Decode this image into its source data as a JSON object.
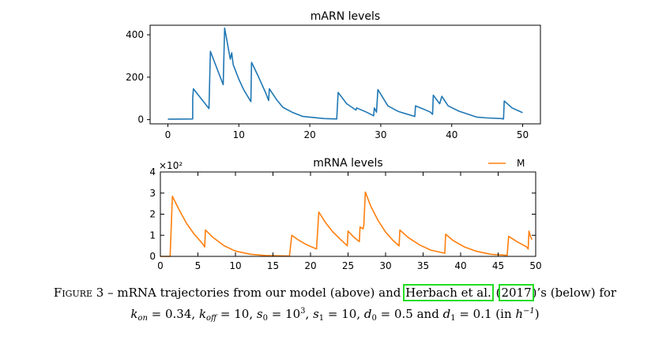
{
  "chart_data": [
    {
      "type": "line",
      "title": "mARN levels",
      "xlabel": "",
      "ylabel": "",
      "xlim": [
        -2.5,
        52.5
      ],
      "ylim": [
        -20,
        445
      ],
      "xticks": [
        0,
        10,
        20,
        30,
        40,
        50
      ],
      "yticks": [
        0,
        200,
        400
      ],
      "grid": false,
      "series": [
        {
          "color": "#1f77b4",
          "points": [
            [
              0,
              2
            ],
            [
              3.5,
              3
            ],
            [
              3.5,
              100
            ],
            [
              3.6,
              145
            ],
            [
              5.8,
              52
            ],
            [
              6.0,
              322
            ],
            [
              7.8,
              165
            ],
            [
              8.0,
              432
            ],
            [
              8.8,
              285
            ],
            [
              9.0,
              315
            ],
            [
              9.2,
              260
            ],
            [
              10.0,
              190
            ],
            [
              10.7,
              140
            ],
            [
              11.7,
              85
            ],
            [
              11.8,
              270
            ],
            [
              12.8,
              200
            ],
            [
              13.8,
              125
            ],
            [
              14.2,
              90
            ],
            [
              14.3,
              145
            ],
            [
              15.3,
              95
            ],
            [
              16.2,
              58
            ],
            [
              17.5,
              35
            ],
            [
              19.0,
              15
            ],
            [
              22.0,
              5
            ],
            [
              23.8,
              3
            ],
            [
              24.0,
              128
            ],
            [
              25.2,
              75
            ],
            [
              26.5,
              45
            ],
            [
              26.6,
              55
            ],
            [
              28.0,
              35
            ],
            [
              29.0,
              18
            ],
            [
              29.1,
              55
            ],
            [
              29.4,
              35
            ],
            [
              29.6,
              142
            ],
            [
              31.0,
              65
            ],
            [
              32.5,
              38
            ],
            [
              34.8,
              15
            ],
            [
              34.9,
              65
            ],
            [
              36.0,
              50
            ],
            [
              37.0,
              35
            ],
            [
              37.3,
              25
            ],
            [
              37.4,
              115
            ],
            [
              38.3,
              75
            ],
            [
              38.6,
              110
            ],
            [
              39.5,
              65
            ],
            [
              41.0,
              40
            ],
            [
              43.5,
              12
            ],
            [
              45.0,
              8
            ],
            [
              47.0,
              5
            ],
            [
              47.3,
              3
            ],
            [
              47.4,
              88
            ],
            [
              48.5,
              55
            ],
            [
              49.5,
              40
            ],
            [
              50.0,
              33
            ]
          ]
        }
      ]
    },
    {
      "type": "line",
      "title": "mRNA levels",
      "multiplier_label": "×10²",
      "xlabel": "",
      "ylabel": "",
      "xlim": [
        0,
        50
      ],
      "ylim": [
        0,
        4
      ],
      "xticks": [
        0,
        5,
        10,
        15,
        20,
        25,
        30,
        35,
        40,
        45,
        50
      ],
      "yticks": [
        0,
        1,
        2,
        3,
        4
      ],
      "legend": {
        "position": "top-right",
        "entries": [
          {
            "label": "M",
            "color": "#ff7f0e"
          }
        ]
      },
      "grid": false,
      "series": [
        {
          "name": "M",
          "color": "#ff7f0e",
          "points": [
            [
              0,
              0
            ],
            [
              1.3,
              0
            ],
            [
              1.6,
              2.85
            ],
            [
              2.5,
              2.2
            ],
            [
              3.5,
              1.55
            ],
            [
              4.5,
              1.05
            ],
            [
              5.5,
              0.65
            ],
            [
              5.9,
              0.45
            ],
            [
              6.0,
              1.25
            ],
            [
              7.0,
              0.9
            ],
            [
              8.5,
              0.5
            ],
            [
              10.0,
              0.25
            ],
            [
              12.0,
              0.1
            ],
            [
              14.0,
              0.04
            ],
            [
              17.2,
              0.02
            ],
            [
              17.5,
              1.0
            ],
            [
              18.5,
              0.75
            ],
            [
              19.5,
              0.55
            ],
            [
              20.8,
              0.35
            ],
            [
              21.1,
              2.1
            ],
            [
              22.0,
              1.6
            ],
            [
              23.0,
              1.15
            ],
            [
              24.0,
              0.8
            ],
            [
              24.9,
              0.5
            ],
            [
              25.0,
              1.2
            ],
            [
              25.8,
              0.9
            ],
            [
              26.5,
              0.7
            ],
            [
              26.6,
              1.4
            ],
            [
              27.0,
              1.3
            ],
            [
              27.1,
              1.5
            ],
            [
              27.3,
              3.05
            ],
            [
              28.0,
              2.4
            ],
            [
              29.0,
              1.7
            ],
            [
              30.0,
              1.15
            ],
            [
              31.0,
              0.75
            ],
            [
              31.8,
              0.5
            ],
            [
              31.9,
              1.25
            ],
            [
              33.0,
              0.9
            ],
            [
              34.5,
              0.55
            ],
            [
              36.0,
              0.3
            ],
            [
              37.9,
              0.15
            ],
            [
              38.0,
              1.05
            ],
            [
              39.0,
              0.75
            ],
            [
              40.5,
              0.45
            ],
            [
              42.0,
              0.25
            ],
            [
              44.0,
              0.1
            ],
            [
              46.2,
              0.05
            ],
            [
              46.4,
              0.95
            ],
            [
              47.5,
              0.7
            ],
            [
              48.8,
              0.45
            ],
            [
              49.0,
              0.35
            ],
            [
              49.1,
              1.2
            ],
            [
              49.3,
              0.95
            ],
            [
              49.5,
              0.8
            ]
          ]
        }
      ]
    }
  ],
  "caption": {
    "figure_label": "Figure 3",
    "dash": " – ",
    "text_before": "mRNA trajectories from our model (above) and ",
    "citation_name": "Herbach et al.",
    "paren_open": " (",
    "citation_year": "2017",
    "text_after": ")’s (below) for",
    "line2": {
      "k": "k",
      "on": "on",
      "eq1": " = 0.34, ",
      "off": "off",
      "eq2": " = 10, ",
      "s": "s",
      "zero": "0",
      "eq3": " = 10",
      "exp3": "3",
      "comma": ", ",
      "one": "1",
      "eq4": " = 10, ",
      "d": "d",
      "eq5": " = 0.5 and ",
      "eq6": " = 0.1 (in ",
      "h": "h",
      "hexp": "−1",
      "close": ")"
    }
  }
}
